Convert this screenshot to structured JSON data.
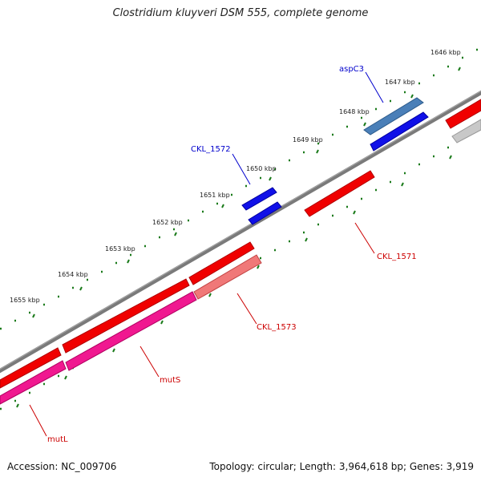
{
  "title": "Clostridium kluyveri DSM 555, complete genome",
  "footer": {
    "accession": "Accession: NC_009706",
    "summary": "Topology: circular; Length: 3,964,618 bp; Genes: 3,919"
  },
  "colors": {
    "backbone": "#7a7a7a",
    "tick": "#1a7a1a",
    "forward_label": "#0000cc",
    "reverse_label": "#cc0000"
  },
  "scale_labels": [
    "1646 kbp",
    "1647 kbp",
    "1648 kbp",
    "1649 kbp",
    "1650 kbp",
    "1651 kbp",
    "1652 kbp",
    "1653 kbp",
    "1654 kbp",
    "1655 kbp"
  ],
  "genes": [
    {
      "name": "aspC3",
      "color": "blue"
    },
    {
      "name": "CKL_1572",
      "color": "blue"
    },
    {
      "name": "CKL_1571",
      "color": "red"
    },
    {
      "name": "CKL_1573",
      "color": "red"
    },
    {
      "name": "mutS",
      "color": "red"
    },
    {
      "name": "mutL",
      "color": "red"
    }
  ]
}
